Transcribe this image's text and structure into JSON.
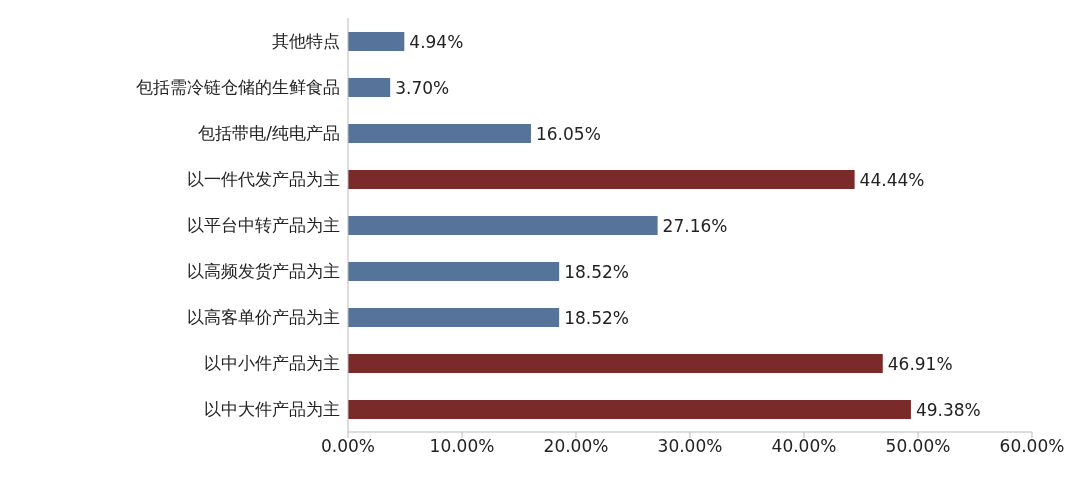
{
  "chart_data": {
    "type": "bar",
    "orientation": "horizontal",
    "categories": [
      "其他特点",
      "包括需冷链仓储的生鲜食品",
      "包括带电/纯电产品",
      "以一件代发产品为主",
      "以平台中转产品为主",
      "以高频发货产品为主",
      "以高客单价产品为主",
      "以中小件产品为主",
      "以中大件产品为主"
    ],
    "values": [
      4.94,
      3.7,
      16.05,
      44.44,
      27.16,
      18.52,
      18.52,
      46.91,
      49.38
    ],
    "value_labels": [
      "4.94%",
      "3.70%",
      "16.05%",
      "44.44%",
      "27.16%",
      "18.52%",
      "18.52%",
      "46.91%",
      "49.38%"
    ],
    "colors": [
      "#56739a",
      "#56739a",
      "#56739a",
      "#7b2a2a",
      "#56739a",
      "#56739a",
      "#56739a",
      "#7b2a2a",
      "#7b2a2a"
    ],
    "xlim": [
      0,
      60
    ],
    "xticks": [
      {
        "value": 0,
        "label": "0.00%"
      },
      {
        "value": 10,
        "label": "10.00%"
      },
      {
        "value": 20,
        "label": "20.00%"
      },
      {
        "value": 30,
        "label": "30.00%"
      },
      {
        "value": 40,
        "label": "40.00%"
      },
      {
        "value": 50,
        "label": "50.00%"
      },
      {
        "value": 60,
        "label": "60.00%"
      }
    ],
    "grid": false,
    "legend": false
  }
}
